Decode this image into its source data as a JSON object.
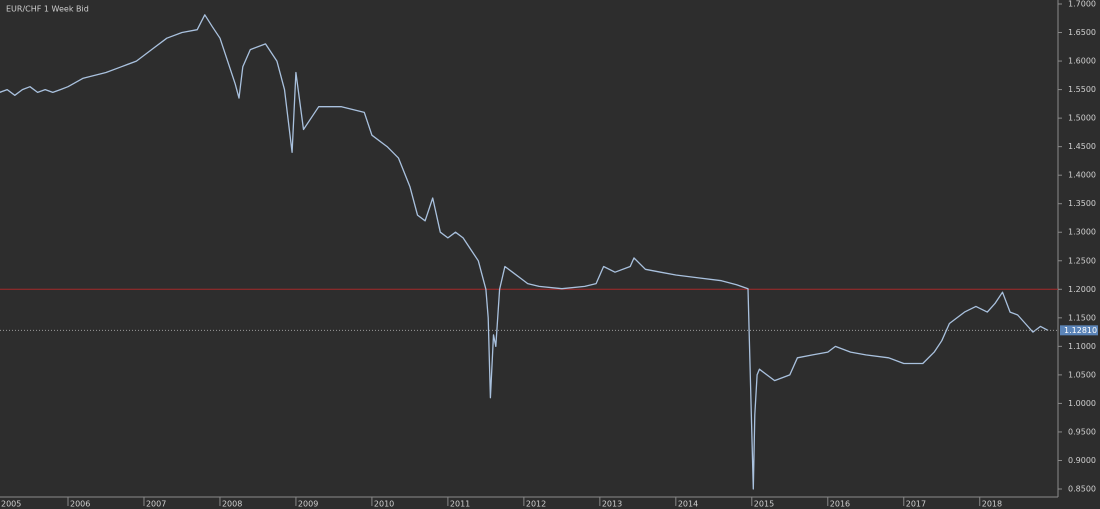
{
  "chart_data": {
    "type": "line",
    "title": "EUR/CHF  1 Week Bid",
    "xlim": [
      2005.105,
      2019.03
    ],
    "xticks": [
      2005,
      2006,
      2007,
      2008,
      2009,
      2010,
      2011,
      2012,
      2013,
      2014,
      2015,
      2016,
      2017,
      2018
    ],
    "ylim": [
      0.836,
      1.707
    ],
    "yticks": [
      {
        "value": 0.85,
        "label": "0.8500"
      },
      {
        "value": 0.9,
        "label": "0.9000"
      },
      {
        "value": 0.95,
        "label": "0.9500"
      },
      {
        "value": 1.0,
        "label": "1.0000"
      },
      {
        "value": 1.05,
        "label": "1.0500"
      },
      {
        "value": 1.1,
        "label": "1.1000"
      },
      {
        "value": 1.15,
        "label": "1.1500"
      },
      {
        "value": 1.2,
        "label": "1.2000"
      },
      {
        "value": 1.25,
        "label": "1.2500"
      },
      {
        "value": 1.3,
        "label": "1.3000"
      },
      {
        "value": 1.35,
        "label": "1.3500"
      },
      {
        "value": 1.4,
        "label": "1.4000"
      },
      {
        "value": 1.45,
        "label": "1.4500"
      },
      {
        "value": 1.5,
        "label": "1.5000"
      },
      {
        "value": 1.55,
        "label": "1.5500"
      },
      {
        "value": 1.6,
        "label": "1.6000"
      },
      {
        "value": 1.65,
        "label": "1.6500"
      },
      {
        "value": 1.7,
        "label": "1.7000"
      }
    ],
    "grid": false,
    "hline": {
      "value": 1.2,
      "color": "#a52a2a"
    },
    "last": {
      "value": 1.1281,
      "label": "1.12810",
      "color": "#5b84b8"
    },
    "series": [
      {
        "name": "EUR/CHF",
        "color": "#a9c1de",
        "x": [
          2005.1,
          2005.2,
          2005.3,
          2005.4,
          2005.5,
          2005.6,
          2005.7,
          2005.8,
          2005.9,
          2006.0,
          2006.2,
          2006.5,
          2006.7,
          2006.9,
          2007.1,
          2007.3,
          2007.5,
          2007.7,
          2007.8,
          2007.9,
          2008.0,
          2008.1,
          2008.2,
          2008.25,
          2008.3,
          2008.4,
          2008.6,
          2008.75,
          2008.85,
          2008.95,
          2009.0,
          2009.1,
          2009.3,
          2009.6,
          2009.9,
          2010.0,
          2010.2,
          2010.35,
          2010.5,
          2010.6,
          2010.7,
          2010.8,
          2010.9,
          2011.0,
          2011.1,
          2011.2,
          2011.3,
          2011.4,
          2011.5,
          2011.53,
          2011.56,
          2011.6,
          2011.63,
          2011.68,
          2011.75,
          2011.85,
          2011.95,
          2012.05,
          2012.2,
          2012.5,
          2012.8,
          2012.95,
          2013.05,
          2013.2,
          2013.4,
          2013.45,
          2013.6,
          2013.8,
          2014.0,
          2014.3,
          2014.6,
          2014.8,
          2014.95,
          2015.02,
          2015.04,
          2015.07,
          2015.1,
          2015.3,
          2015.5,
          2015.6,
          2015.8,
          2016.0,
          2016.1,
          2016.3,
          2016.5,
          2016.8,
          2017.0,
          2017.25,
          2017.4,
          2017.5,
          2017.6,
          2017.8,
          2017.95,
          2018.1,
          2018.2,
          2018.3,
          2018.4,
          2018.5,
          2018.6,
          2018.7,
          2018.8,
          2018.9
        ],
        "values": [
          1.545,
          1.55,
          1.54,
          1.55,
          1.555,
          1.545,
          1.55,
          1.545,
          1.55,
          1.555,
          1.57,
          1.58,
          1.59,
          1.6,
          1.62,
          1.64,
          1.65,
          1.655,
          1.681,
          1.66,
          1.64,
          1.6,
          1.56,
          1.535,
          1.59,
          1.62,
          1.63,
          1.6,
          1.55,
          1.44,
          1.58,
          1.48,
          1.52,
          1.52,
          1.51,
          1.47,
          1.45,
          1.43,
          1.38,
          1.33,
          1.32,
          1.36,
          1.3,
          1.29,
          1.3,
          1.29,
          1.27,
          1.25,
          1.2,
          1.15,
          1.01,
          1.12,
          1.1,
          1.2,
          1.24,
          1.23,
          1.22,
          1.21,
          1.205,
          1.201,
          1.205,
          1.21,
          1.24,
          1.23,
          1.24,
          1.255,
          1.235,
          1.23,
          1.225,
          1.22,
          1.215,
          1.208,
          1.201,
          0.85,
          0.98,
          1.05,
          1.06,
          1.04,
          1.05,
          1.08,
          1.085,
          1.09,
          1.1,
          1.09,
          1.085,
          1.08,
          1.07,
          1.07,
          1.09,
          1.11,
          1.14,
          1.16,
          1.17,
          1.16,
          1.175,
          1.195,
          1.16,
          1.155,
          1.14,
          1.125,
          1.135,
          1.128
        ]
      }
    ]
  }
}
